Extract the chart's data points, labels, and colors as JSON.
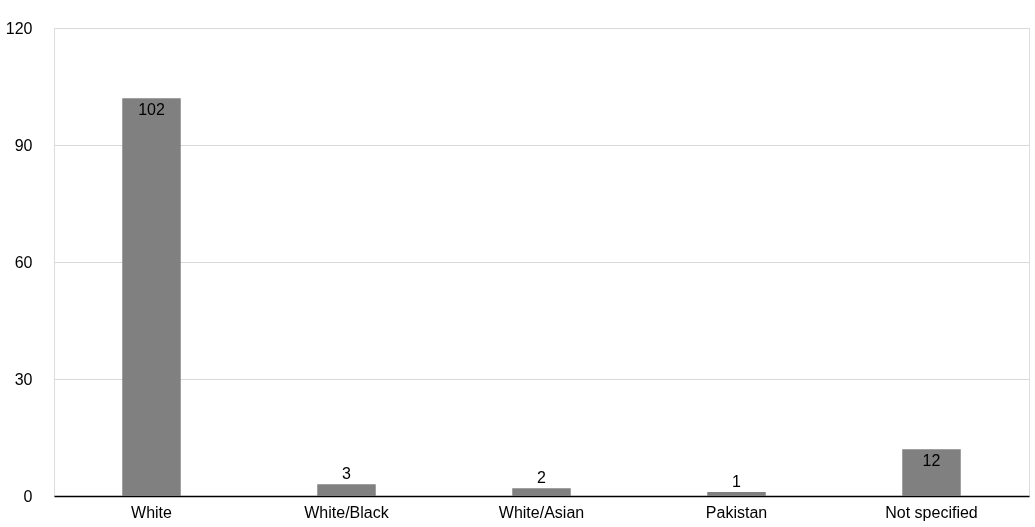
{
  "chart_data": {
    "type": "bar",
    "categories": [
      "White",
      "White/Black",
      "White/Asian",
      "Pakistan",
      "Not specified"
    ],
    "values": [
      102,
      3,
      2,
      1,
      12
    ],
    "color": "#808080",
    "ylim": [
      0,
      120
    ],
    "yticks": [
      0,
      30,
      60,
      90,
      120
    ],
    "grid": "y",
    "data_labels": true
  }
}
